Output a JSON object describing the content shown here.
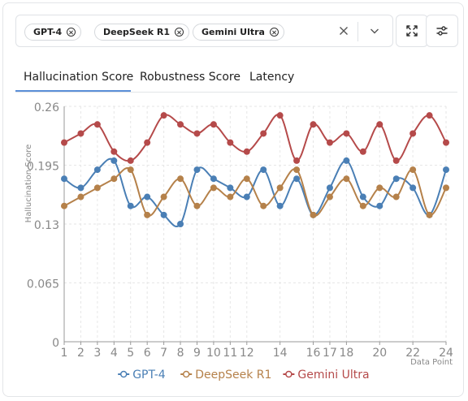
{
  "selector": {
    "chips": [
      {
        "label": "GPT-4"
      },
      {
        "label": "DeepSeek R1"
      },
      {
        "label": "Gemini Ultra"
      }
    ]
  },
  "tabs": [
    {
      "label": "Hallucination Score",
      "active": true
    },
    {
      "label": "Robustness Score",
      "active": false
    },
    {
      "label": "Latency",
      "active": false
    }
  ],
  "chart_data": {
    "type": "line",
    "ylabel": "Hallucination Score",
    "xlabel": "Data Point",
    "ylim": [
      0,
      0.26
    ],
    "yticks": [
      "0",
      "0.065",
      "0.13",
      "0.195",
      "0.26"
    ],
    "x": [
      1,
      2,
      3,
      4,
      5,
      6,
      7,
      8,
      9,
      10,
      11,
      12,
      13,
      14,
      15,
      16,
      17,
      18,
      19,
      20,
      21,
      22,
      23,
      24
    ],
    "xtick_labels": [
      "1",
      "2",
      "3",
      "4",
      "5",
      "6",
      "7",
      "8",
      "9",
      "10",
      "11",
      "12",
      "14",
      "16",
      "17",
      "18",
      "20",
      "22",
      "24"
    ],
    "legend_position": "bottom",
    "grid": true,
    "series": [
      {
        "name": "GPT-4",
        "color": "#4a7fb5",
        "values": [
          0.18,
          0.17,
          0.19,
          0.2,
          0.15,
          0.16,
          0.14,
          0.13,
          0.19,
          0.18,
          0.17,
          0.16,
          0.19,
          0.15,
          0.18,
          0.14,
          0.17,
          0.2,
          0.16,
          0.15,
          0.18,
          0.17,
          0.14,
          0.19
        ]
      },
      {
        "name": "DeepSeek R1",
        "color": "#b5814a",
        "values": [
          0.15,
          0.16,
          0.17,
          0.18,
          0.19,
          0.14,
          0.16,
          0.18,
          0.15,
          0.17,
          0.16,
          0.18,
          0.15,
          0.17,
          0.19,
          0.14,
          0.16,
          0.18,
          0.15,
          0.17,
          0.16,
          0.19,
          0.14,
          0.17
        ]
      },
      {
        "name": "Gemini Ultra",
        "color": "#b54a4a",
        "values": [
          0.22,
          0.23,
          0.24,
          0.21,
          0.2,
          0.22,
          0.25,
          0.24,
          0.23,
          0.24,
          0.22,
          0.21,
          0.23,
          0.25,
          0.2,
          0.24,
          0.22,
          0.23,
          0.21,
          0.24,
          0.2,
          0.23,
          0.25,
          0.22
        ]
      }
    ]
  }
}
